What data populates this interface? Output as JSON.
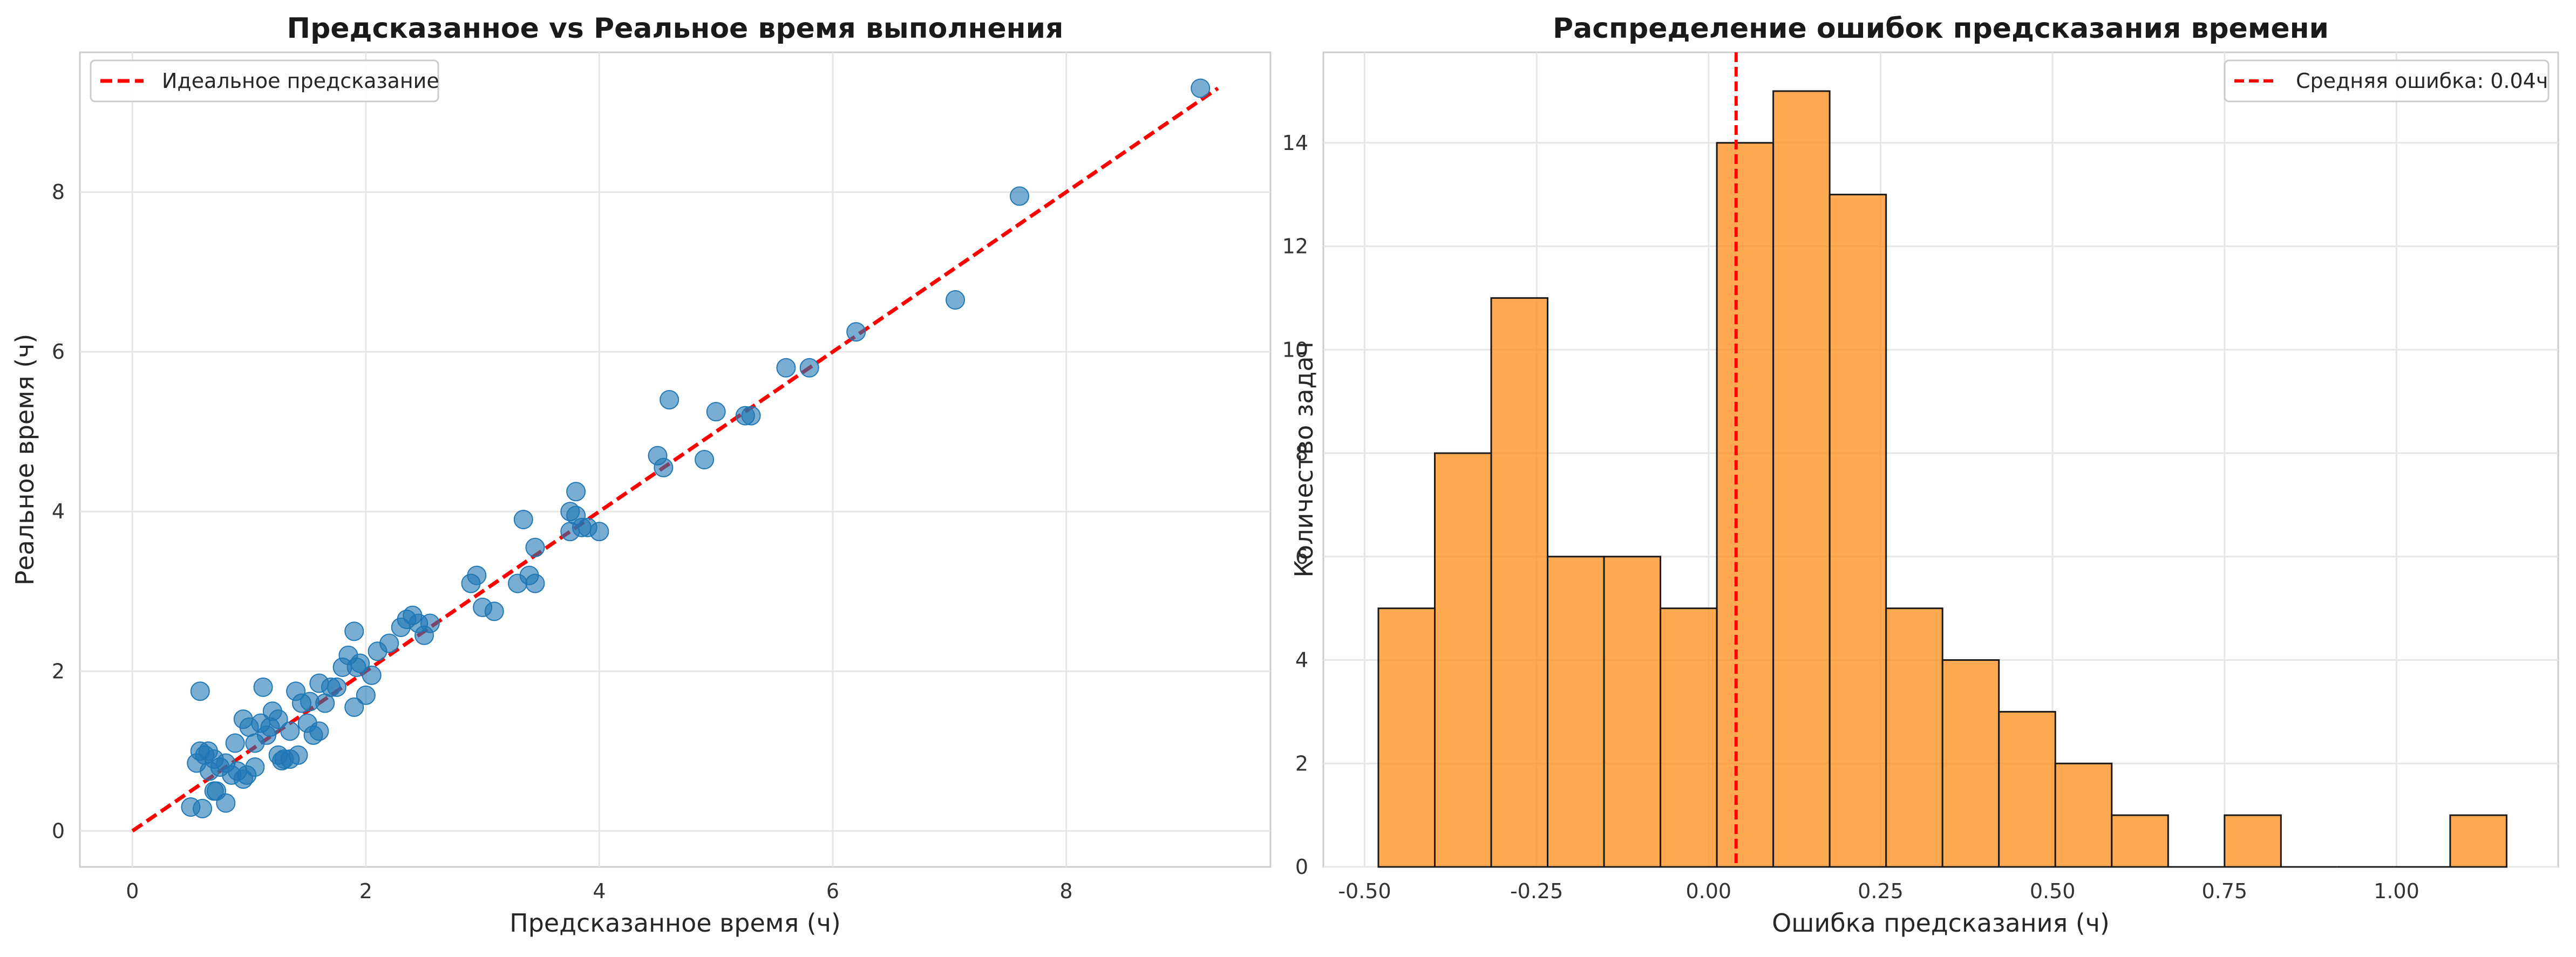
{
  "chart_data": [
    {
      "type": "scatter",
      "title": "Предсказанное vs Реальное время выполнения",
      "xlabel": "Предсказанное время (ч)",
      "ylabel": "Реальное время (ч)",
      "xlim": [
        -0.45,
        9.75
      ],
      "ylim": [
        -0.45,
        9.75
      ],
      "xticks": [
        0,
        2,
        4,
        6,
        8
      ],
      "yticks": [
        0,
        2,
        4,
        6,
        8
      ],
      "grid": true,
      "legend_position": "top-left",
      "colors": {
        "points": "#1f77b4",
        "ideal_line": "#ff0000"
      },
      "series": [
        {
          "type": "line",
          "style": "dashed",
          "name": "Идеальное предсказание",
          "x": [
            0,
            9.3
          ],
          "y": [
            0,
            9.3
          ]
        },
        {
          "type": "scatter",
          "x": [
            0.55,
            0.58,
            0.62,
            0.66,
            0.7,
            0.75,
            0.8,
            0.85,
            0.9,
            0.95,
            1.0,
            1.05,
            1.1,
            1.15,
            1.2,
            1.25,
            1.3,
            1.35,
            1.4,
            1.45,
            1.5,
            1.55,
            1.6,
            1.7,
            1.8,
            1.85,
            1.9,
            1.95,
            2.0,
            2.05,
            2.1,
            2.2,
            2.3,
            2.4,
            2.5,
            0.5,
            0.6,
            0.7,
            0.8,
            0.95,
            1.05,
            1.25,
            1.35,
            1.6,
            1.9,
            0.58,
            1.12,
            1.92,
            2.95,
            3.0,
            3.1,
            3.3,
            3.4,
            3.45,
            2.9,
            3.35,
            3.75,
            3.8,
            3.9,
            4.0,
            3.75,
            3.8,
            4.5,
            4.55,
            4.6,
            4.9,
            5.0,
            5.25,
            5.3,
            5.6,
            5.8,
            6.2,
            7.05,
            7.6,
            9.15,
            0.65,
            0.72,
            0.88,
            1.18,
            1.28,
            1.42,
            1.75,
            2.55,
            3.45,
            3.85,
            2.35,
            2.45,
            1.65,
            0.98,
            1.52
          ],
          "y": [
            0.85,
            1.0,
            0.95,
            0.75,
            0.9,
            0.8,
            0.85,
            0.7,
            0.75,
            1.4,
            1.3,
            1.1,
            1.35,
            1.2,
            1.5,
            1.4,
            0.9,
            1.25,
            1.75,
            1.6,
            1.35,
            1.2,
            1.85,
            1.8,
            2.05,
            2.2,
            1.55,
            2.1,
            1.7,
            1.95,
            2.25,
            2.35,
            2.55,
            2.7,
            2.45,
            0.3,
            0.28,
            0.5,
            0.35,
            0.65,
            0.8,
            0.95,
            0.9,
            1.25,
            2.5,
            1.75,
            1.8,
            2.05,
            3.2,
            2.8,
            2.75,
            3.1,
            3.2,
            3.55,
            3.1,
            3.9,
            3.75,
            3.95,
            3.8,
            3.75,
            4.0,
            4.25,
            4.7,
            4.55,
            5.4,
            4.65,
            5.25,
            5.2,
            5.2,
            5.8,
            5.8,
            6.25,
            6.65,
            7.95,
            9.3,
            1.0,
            0.5,
            1.1,
            1.3,
            0.88,
            0.95,
            1.8,
            2.6,
            3.1,
            3.8,
            2.65,
            2.6,
            1.6,
            0.7,
            1.62
          ]
        }
      ]
    },
    {
      "type": "bar",
      "title": "Распределение ошибок предсказания времени",
      "xlabel": "Ошибка предсказания (ч)",
      "ylabel": "Количество задач",
      "xlim": [
        -0.56,
        1.235
      ],
      "ylim": [
        0,
        15.75
      ],
      "xticks": [
        "-0.50",
        "-0.25",
        "0.00",
        "0.25",
        "0.50",
        "0.75",
        "1.00"
      ],
      "xtick_values": [
        -0.5,
        -0.25,
        0,
        0.25,
        0.5,
        0.75,
        1.0
      ],
      "yticks": [
        0,
        2,
        4,
        6,
        8,
        10,
        12,
        14
      ],
      "grid": true,
      "legend_position": "top-right",
      "colors": {
        "bars": "#ff8c1a",
        "mean_line": "#ff0000",
        "edges": "#1a1a1a"
      },
      "bin_edges": [
        -0.48,
        -0.398,
        -0.316,
        -0.234,
        -0.152,
        -0.07,
        0.012,
        0.094,
        0.176,
        0.258,
        0.34,
        0.422,
        0.504,
        0.586,
        0.668,
        0.75,
        0.832,
        0.914,
        0.996,
        1.078,
        1.16
      ],
      "values": [
        5,
        8,
        11,
        6,
        6,
        5,
        14,
        15,
        13,
        5,
        4,
        3,
        2,
        1,
        0,
        1,
        0,
        0,
        0,
        1
      ],
      "mean_line": {
        "x": 0.04,
        "label": "Средняя ошибка: 0.04ч"
      }
    }
  ]
}
